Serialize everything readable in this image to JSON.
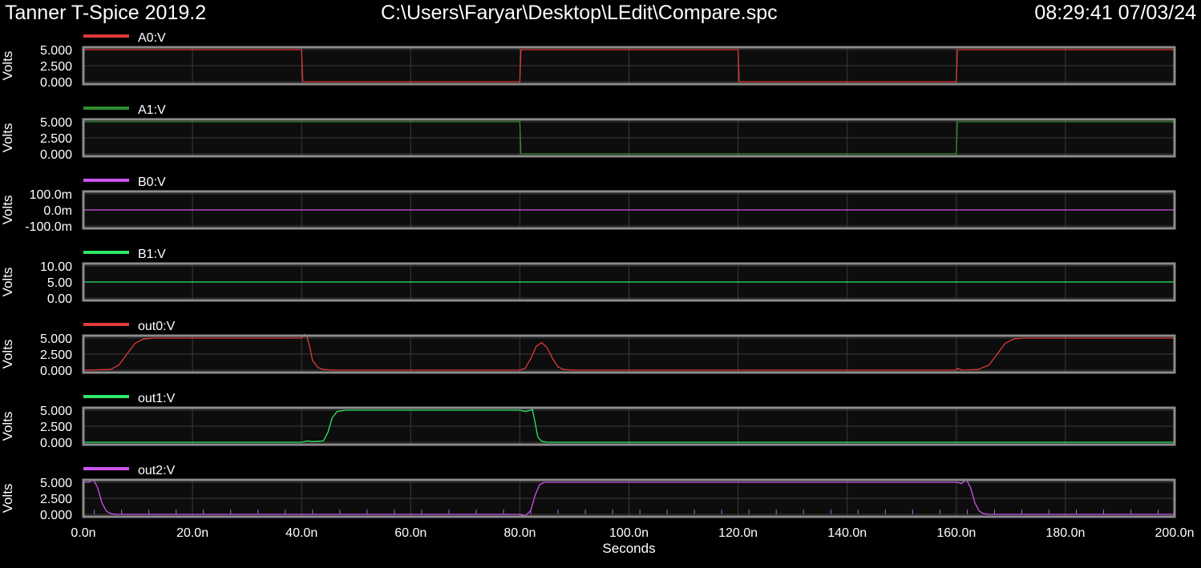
{
  "header": {
    "app_title": "Tanner T-Spice 2019.2",
    "file_path": "C:\\Users\\Faryar\\Desktop\\LEdit\\Compare.spc",
    "timestamp": "08:29:41 07/03/24"
  },
  "chart_data": {
    "type": "line",
    "xlabel": "Seconds",
    "xlim": [
      0,
      200
    ],
    "x_unit": "ns",
    "x_tick_values": [
      0,
      20,
      40,
      60,
      80,
      100,
      120,
      140,
      160,
      180,
      200
    ],
    "x_tick_labels": [
      "0.0n",
      "20.0n",
      "40.0n",
      "60.0n",
      "80.0n",
      "100.0n",
      "120.0n",
      "140.0n",
      "160.0n",
      "180.0n",
      "200.0n"
    ],
    "grid": true,
    "panels": [
      {
        "name": "A0:V",
        "color": "#e03a3a",
        "ylabel": "Volts",
        "ylim": [
          0,
          5
        ],
        "y_tick_values": [
          0,
          2.5,
          5
        ],
        "y_tick_labels": [
          "0.000",
          "2.500",
          "5.000"
        ],
        "x": [
          0,
          40,
          40.2,
          80,
          80.2,
          120,
          120.2,
          160,
          160.2,
          200
        ],
        "y": [
          5,
          5,
          0,
          0,
          5,
          5,
          0,
          0,
          5,
          5
        ]
      },
      {
        "name": "A1:V",
        "color": "#2f8f2f",
        "ylabel": "Volts",
        "ylim": [
          0,
          5
        ],
        "y_tick_values": [
          0,
          2.5,
          5
        ],
        "y_tick_labels": [
          "0.000",
          "2.500",
          "5.000"
        ],
        "x": [
          0,
          80,
          80.2,
          160,
          160.2,
          200
        ],
        "y": [
          5,
          5,
          0,
          0,
          5,
          5
        ]
      },
      {
        "name": "B0:V",
        "color": "#cc55ee",
        "ylabel": "Volts",
        "ylim": [
          -0.1,
          0.1
        ],
        "y_tick_values": [
          -0.1,
          0,
          0.1
        ],
        "y_tick_labels": [
          "-100.0m",
          "0.0m",
          "100.0m"
        ],
        "x": [
          0,
          200
        ],
        "y": [
          0,
          0
        ]
      },
      {
        "name": "B1:V",
        "color": "#2ee866",
        "ylabel": "Volts",
        "ylim": [
          0,
          10
        ],
        "y_tick_values": [
          0,
          5,
          10
        ],
        "y_tick_labels": [
          "0.00",
          "5.00",
          "10.00"
        ],
        "x": [
          0,
          200
        ],
        "y": [
          5,
          5
        ]
      },
      {
        "name": "out0:V",
        "color": "#e03a3a",
        "ylabel": "Volts",
        "ylim": [
          0,
          5
        ],
        "y_tick_values": [
          0,
          2.5,
          5
        ],
        "y_tick_labels": [
          "0.000",
          "2.500",
          "5.000"
        ],
        "x": [
          0,
          5,
          6.5,
          8,
          9.5,
          11,
          13,
          40,
          40.5,
          41,
          41.5,
          42,
          43,
          44,
          46,
          80,
          81,
          82,
          83,
          84,
          85,
          86,
          87,
          88,
          90,
          160,
          160.2,
          161,
          164,
          166,
          167.5,
          169,
          170.5,
          172,
          174,
          200
        ],
        "y": [
          0,
          0.1,
          0.8,
          2.5,
          4.2,
          4.85,
          5,
          5,
          5.6,
          5.2,
          3.6,
          1.5,
          0.4,
          0.1,
          0,
          0,
          0.3,
          1.8,
          3.7,
          4.3,
          3.5,
          1.8,
          0.5,
          0.1,
          0,
          0,
          0.3,
          0,
          0.1,
          0.8,
          2.5,
          4.2,
          4.85,
          5,
          5,
          5
        ]
      },
      {
        "name": "out1:V",
        "color": "#2ee866",
        "ylabel": "Volts",
        "ylim": [
          0,
          5
        ],
        "y_tick_values": [
          0,
          2.5,
          5
        ],
        "y_tick_labels": [
          "0.000",
          "2.500",
          "5.000"
        ],
        "x": [
          0,
          40,
          41,
          42,
          44,
          44.8,
          45.6,
          46.5,
          48,
          80,
          81,
          82.3,
          82.8,
          83.3,
          84,
          85,
          90,
          200
        ],
        "y": [
          0,
          0,
          0.2,
          0.1,
          0.2,
          1.5,
          3.8,
          4.8,
          5,
          5,
          4.8,
          5.1,
          3.0,
          0.8,
          0.15,
          0,
          0,
          0
        ]
      },
      {
        "name": "out2:V",
        "color": "#cc55ee",
        "ylabel": "Volts",
        "ylim": [
          0,
          5
        ],
        "y_tick_values": [
          0,
          2.5,
          5
        ],
        "y_tick_labels": [
          "0.000",
          "2.500",
          "5.000"
        ],
        "x": [
          0,
          1,
          1.8,
          2.6,
          3.4,
          4.2,
          5,
          6,
          80,
          81,
          82,
          82.8,
          83.6,
          84.5,
          86,
          160,
          161,
          161.8,
          162.6,
          163.4,
          164.2,
          165,
          166,
          200
        ],
        "y": [
          5,
          5,
          5.5,
          4.2,
          1.8,
          0.5,
          0.1,
          0,
          0,
          -0.25,
          0.6,
          3.0,
          4.6,
          5,
          5,
          5,
          4.8,
          5.5,
          4.2,
          1.8,
          0.5,
          0.1,
          0,
          0
        ]
      }
    ]
  }
}
